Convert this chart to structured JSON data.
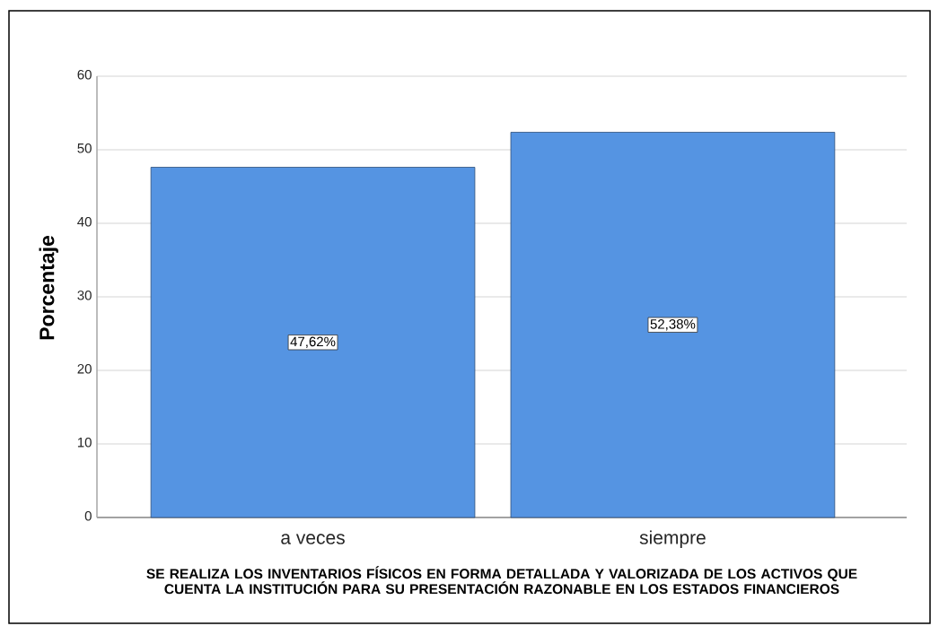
{
  "chart_data": {
    "type": "bar",
    "categories": [
      "a veces",
      "siempre"
    ],
    "values": [
      47.62,
      52.38
    ],
    "value_labels": [
      "47,62%",
      "52,38%"
    ],
    "color": "#5594e2",
    "ylabel": "Porcentaje",
    "xlabel": "SE REALIZA LOS INVENTARIOS FÍSICOS EN FORMA DETALLADA Y VALORIZADA DE LOS ACTIVOS QUE CUENTA LA INSTITUCIÓN PARA SU PRESENTACIÓN RAZONABLE EN LOS ESTADOS FINANCIEROS",
    "ylim": [
      0,
      60
    ],
    "yticks": [
      0,
      10,
      20,
      30,
      40,
      50,
      60
    ],
    "grid": "y"
  }
}
